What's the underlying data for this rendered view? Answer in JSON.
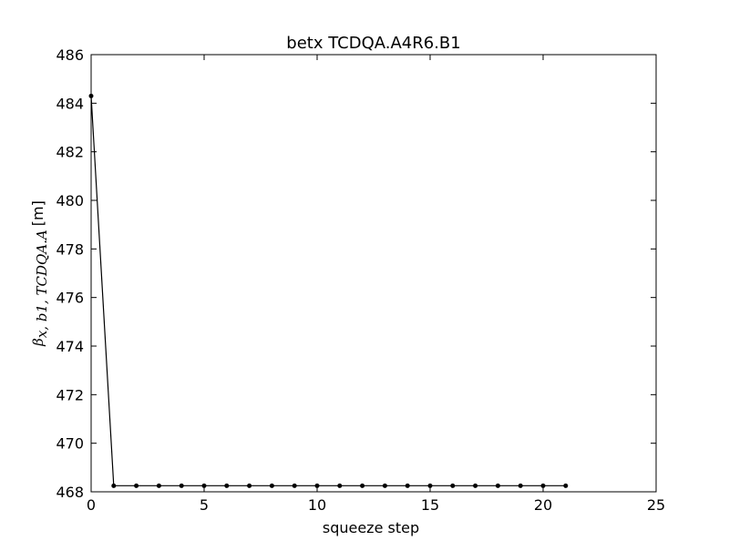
{
  "chart_data": {
    "type": "line",
    "title": "betx TCDQA.A4R6.B1",
    "xlabel": "squeeze step",
    "ylabel": {
      "symbol": "β",
      "subscript": "x, b1, TCDQA.A",
      "unit": "[m]"
    },
    "xlim": [
      0,
      25
    ],
    "ylim": [
      468,
      486
    ],
    "xticks": [
      0,
      5,
      10,
      15,
      20,
      25
    ],
    "yticks": [
      468,
      470,
      472,
      474,
      476,
      478,
      480,
      482,
      484,
      486
    ],
    "grid": false,
    "series": [
      {
        "color": "#000000",
        "marker": "dot",
        "x": [
          0,
          1,
          2,
          3,
          4,
          5,
          6,
          7,
          8,
          9,
          10,
          11,
          12,
          13,
          14,
          15,
          16,
          17,
          18,
          19,
          20,
          21
        ],
        "y": [
          484.3,
          468.25,
          468.25,
          468.25,
          468.25,
          468.25,
          468.25,
          468.25,
          468.25,
          468.25,
          468.25,
          468.25,
          468.25,
          468.25,
          468.25,
          468.25,
          468.25,
          468.25,
          468.25,
          468.25,
          468.25,
          468.25
        ]
      }
    ]
  }
}
